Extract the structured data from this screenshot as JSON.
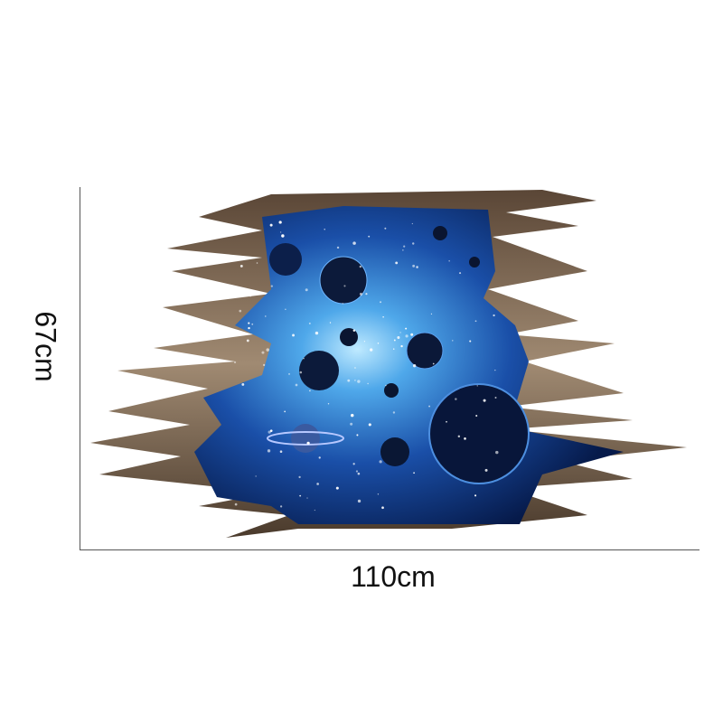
{
  "product": {
    "width_label": "110cm",
    "height_label": "67cm",
    "colors": {
      "space": "#1a4fa8",
      "glow": "#7fd0ff",
      "rock": "#8a7360",
      "deep": "#061a4a"
    }
  }
}
